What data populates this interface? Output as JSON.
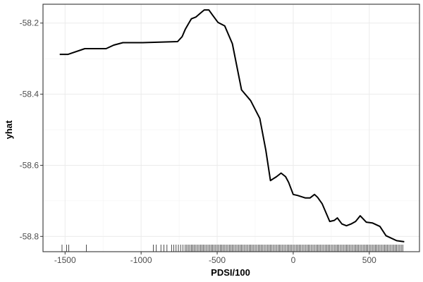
{
  "chart_data": {
    "type": "line",
    "xlabel": "PDSI/100",
    "ylabel": "yhat",
    "xlim": [
      -1645,
      830
    ],
    "ylim": [
      -58.843,
      -58.147
    ],
    "x_ticks": [
      -1500,
      -1000,
      -500,
      0,
      500
    ],
    "x_tick_labels": [
      "-1500",
      "-1000",
      "-500",
      "0",
      "500"
    ],
    "y_ticks": [
      -58.2,
      -58.4,
      -58.6,
      -58.8
    ],
    "y_tick_labels": [
      "-58.2",
      "-58.4",
      "-58.6",
      "-58.8"
    ],
    "grid": true,
    "series": [
      {
        "color": "#000000",
        "x": [
          -1535,
          -1480,
          -1370,
          -1230,
          -1180,
          -1120,
          -990,
          -760,
          -730,
          -710,
          -690,
          -670,
          -640,
          -610,
          -585,
          -555,
          -530,
          -495,
          -450,
          -400,
          -340,
          -280,
          -220,
          -180,
          -150,
          -110,
          -80,
          -50,
          -30,
          0,
          30,
          80,
          110,
          140,
          160,
          190,
          240,
          270,
          290,
          320,
          350,
          380,
          410,
          440,
          480,
          520,
          570,
          610,
          680,
          730
        ],
        "y": [
          -58.288,
          -58.288,
          -58.272,
          -58.272,
          -58.262,
          -58.255,
          -58.255,
          -58.252,
          -58.238,
          -58.218,
          -58.203,
          -58.188,
          -58.183,
          -58.172,
          -58.163,
          -58.163,
          -58.178,
          -58.198,
          -58.208,
          -58.258,
          -58.388,
          -58.418,
          -58.468,
          -58.558,
          -58.643,
          -58.632,
          -58.622,
          -58.632,
          -58.648,
          -58.682,
          -58.685,
          -58.692,
          -58.692,
          -58.682,
          -58.69,
          -58.708,
          -58.758,
          -58.755,
          -58.748,
          -58.765,
          -58.77,
          -58.765,
          -58.758,
          -58.742,
          -58.76,
          -58.762,
          -58.772,
          -58.798,
          -58.812,
          -58.815
        ]
      }
    ],
    "rug_x": [
      -1520,
      -1490,
      -1475,
      -1360,
      -920,
      -900,
      -870,
      -850,
      -830,
      -800,
      -785,
      -770,
      -755,
      -740,
      -725,
      -710,
      -700,
      -690,
      -680,
      -670,
      -660,
      -650,
      -640,
      -630,
      -620,
      -610,
      -600,
      -590,
      -580,
      -570,
      -560,
      -550,
      -540,
      -530,
      -520,
      -510,
      -500,
      -490,
      -480,
      -470,
      -460,
      -450,
      -440,
      -430,
      -420,
      -410,
      -400,
      -390,
      -380,
      -370,
      -360,
      -350,
      -340,
      -330,
      -320,
      -310,
      -300,
      -290,
      -280,
      -270,
      -260,
      -250,
      -240,
      -230,
      -220,
      -210,
      -200,
      -190,
      -180,
      -170,
      -160,
      -150,
      -140,
      -130,
      -120,
      -110,
      -100,
      -90,
      -80,
      -70,
      -60,
      -50,
      -40,
      -30,
      -20,
      -10,
      0,
      10,
      20,
      30,
      40,
      50,
      60,
      70,
      80,
      90,
      100,
      110,
      120,
      130,
      140,
      150,
      160,
      170,
      180,
      190,
      200,
      210,
      220,
      230,
      240,
      250,
      260,
      270,
      280,
      290,
      300,
      310,
      320,
      330,
      340,
      350,
      360,
      370,
      380,
      390,
      400,
      410,
      420,
      430,
      440,
      450,
      460,
      470,
      480,
      490,
      500,
      510,
      520,
      530,
      540,
      550,
      560,
      570,
      580,
      590,
      600,
      610,
      620,
      630,
      640,
      650,
      660,
      670,
      680,
      690,
      700,
      710,
      720
    ]
  }
}
